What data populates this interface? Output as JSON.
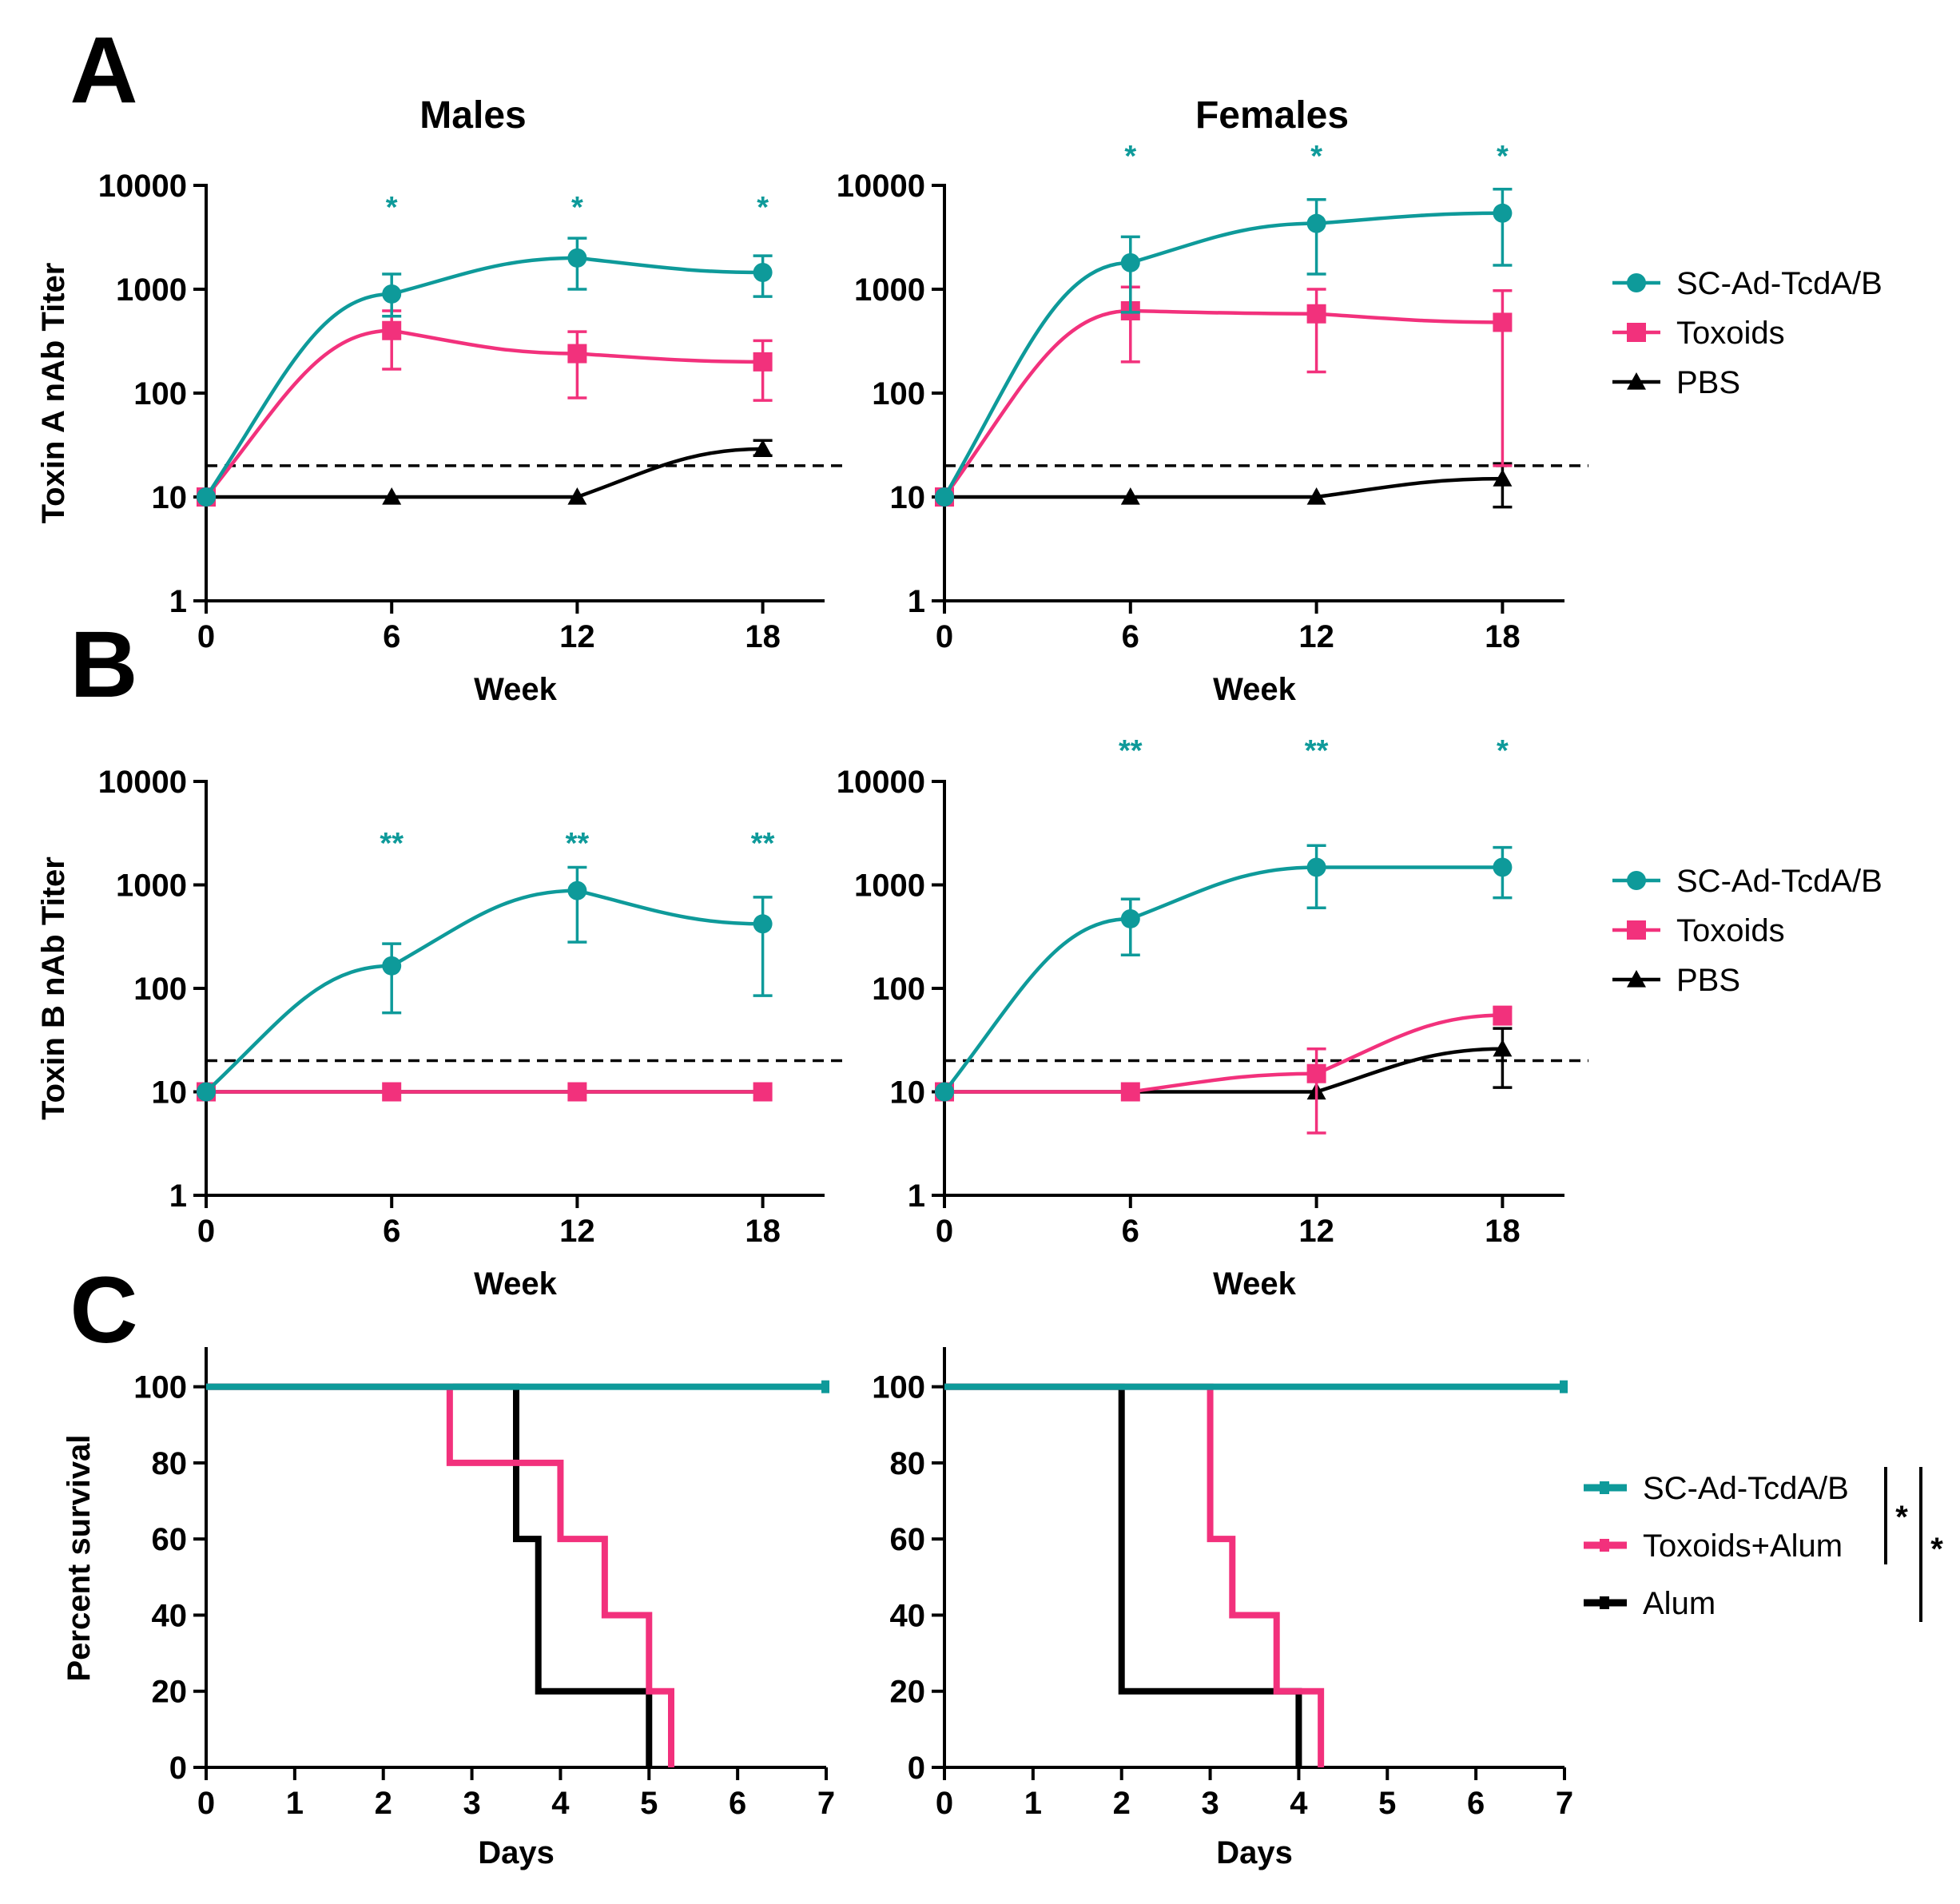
{
  "panel_labels": [
    "A",
    "B",
    "C"
  ],
  "column_titles": [
    "Males",
    "Females"
  ],
  "colors": {
    "teal": "#0e9a9a",
    "pink": "#f2317c",
    "black": "#000000"
  },
  "legends": {
    "titer": [
      "SC-Ad-TcdA/B",
      "Toxoids",
      "PBS"
    ],
    "survival": [
      "SC-Ad-TcdA/B",
      "Toxoids+Alum",
      "Alum"
    ],
    "significance_marks": [
      "*",
      "*"
    ]
  },
  "chart_data": [
    {
      "id": "A-males",
      "type": "line",
      "yscale": "log",
      "ylabel": "Toxin A nAb Titer",
      "xlabel": "Week",
      "x_ticks": [
        "0",
        "6",
        "12",
        "18"
      ],
      "y_ticks": [
        "1",
        "10",
        "100",
        "1000",
        "10000"
      ],
      "ylim": [
        1,
        10000
      ],
      "xlim": [
        0,
        20
      ],
      "threshold": 20,
      "x": [
        0,
        6,
        12,
        18
      ],
      "series": [
        {
          "name": "SC-Ad-TcdA/B",
          "color": "#0e9a9a",
          "marker": "circle",
          "values": [
            10,
            900,
            2000,
            1450
          ],
          "err_lo": [
            10,
            550,
            1000,
            850
          ],
          "err_hi": [
            10,
            1400,
            3100,
            2100
          ]
        },
        {
          "name": "Toxoids",
          "color": "#f2317c",
          "marker": "square",
          "values": [
            10,
            400,
            240,
            200
          ],
          "err_lo": [
            10,
            170,
            90,
            85
          ],
          "err_hi": [
            10,
            620,
            390,
            320
          ]
        },
        {
          "name": "PBS",
          "color": "#000000",
          "marker": "triangle",
          "values": [
            10,
            10,
            10,
            29
          ],
          "err_lo": [
            10,
            10,
            10,
            25
          ],
          "err_hi": [
            10,
            10,
            10,
            35
          ]
        }
      ],
      "significance": [
        {
          "x": 6,
          "label": "*"
        },
        {
          "x": 12,
          "label": "*"
        },
        {
          "x": 18,
          "label": "*"
        }
      ]
    },
    {
      "id": "A-females",
      "type": "line",
      "yscale": "log",
      "ylabel": "",
      "xlabel": "Week",
      "x_ticks": [
        "0",
        "6",
        "12",
        "18"
      ],
      "y_ticks": [
        "1",
        "10",
        "100",
        "1000",
        "10000"
      ],
      "ylim": [
        1,
        10000
      ],
      "xlim": [
        0,
        20
      ],
      "threshold": 20,
      "x": [
        0,
        6,
        12,
        18
      ],
      "series": [
        {
          "name": "SC-Ad-TcdA/B",
          "color": "#0e9a9a",
          "marker": "circle",
          "values": [
            10,
            1800,
            4300,
            5400
          ],
          "err_lo": [
            10,
            600,
            1400,
            1700
          ],
          "err_hi": [
            10,
            3200,
            7300,
            9200
          ]
        },
        {
          "name": "Toxoids",
          "color": "#f2317c",
          "marker": "square",
          "values": [
            10,
            620,
            580,
            480
          ],
          "err_lo": [
            10,
            200,
            160,
            20
          ],
          "err_hi": [
            10,
            1050,
            1000,
            970
          ]
        },
        {
          "name": "PBS",
          "color": "#000000",
          "marker": "triangle",
          "values": [
            10,
            10,
            10,
            15
          ],
          "err_lo": [
            10,
            10,
            10,
            8
          ],
          "err_hi": [
            10,
            10,
            10,
            21
          ]
        }
      ],
      "significance": [
        {
          "x": 6,
          "label": "*"
        },
        {
          "x": 12,
          "label": "*"
        },
        {
          "x": 18,
          "label": "*"
        }
      ]
    },
    {
      "id": "B-males",
      "type": "line",
      "yscale": "log",
      "ylabel": "Toxin B nAb Titer",
      "xlabel": "Week",
      "x_ticks": [
        "0",
        "6",
        "12",
        "18"
      ],
      "y_ticks": [
        "1",
        "10",
        "100",
        "1000",
        "10000"
      ],
      "ylim": [
        1,
        10000
      ],
      "xlim": [
        0,
        20
      ],
      "threshold": 20,
      "x": [
        0,
        6,
        12,
        18
      ],
      "series": [
        {
          "name": "SC-Ad-TcdA/B",
          "color": "#0e9a9a",
          "marker": "circle",
          "values": [
            10,
            165,
            880,
            420
          ],
          "err_lo": [
            10,
            58,
            280,
            85
          ],
          "err_hi": [
            10,
            270,
            1480,
            760
          ]
        },
        {
          "name": "Toxoids",
          "color": "#f2317c",
          "marker": "square",
          "values": [
            10,
            10,
            10,
            10
          ],
          "err_lo": [
            10,
            10,
            10,
            10
          ],
          "err_hi": [
            10,
            10,
            10,
            10
          ]
        },
        {
          "name": "PBS",
          "color": "#000000",
          "marker": "triangle",
          "values": [
            10,
            10,
            10,
            10
          ],
          "err_lo": [
            10,
            10,
            10,
            10
          ],
          "err_hi": [
            10,
            10,
            10,
            10
          ]
        }
      ],
      "significance": [
        {
          "x": 6,
          "label": "**"
        },
        {
          "x": 12,
          "label": "**"
        },
        {
          "x": 18,
          "label": "**"
        }
      ]
    },
    {
      "id": "B-females",
      "type": "line",
      "yscale": "log",
      "ylabel": "",
      "xlabel": "Week",
      "x_ticks": [
        "0",
        "6",
        "12",
        "18"
      ],
      "y_ticks": [
        "1",
        "10",
        "100",
        "1000",
        "10000"
      ],
      "ylim": [
        1,
        10000
      ],
      "xlim": [
        0,
        20
      ],
      "threshold": 20,
      "x": [
        0,
        6,
        12,
        18
      ],
      "series": [
        {
          "name": "SC-Ad-TcdA/B",
          "color": "#0e9a9a",
          "marker": "circle",
          "values": [
            10,
            470,
            1480,
            1480
          ],
          "err_lo": [
            10,
            210,
            600,
            750
          ],
          "err_hi": [
            10,
            730,
            2400,
            2300
          ]
        },
        {
          "name": "Toxoids",
          "color": "#f2317c",
          "marker": "square",
          "values": [
            10,
            10,
            15,
            55
          ],
          "err_lo": [
            10,
            10,
            4,
            45
          ],
          "err_hi": [
            10,
            10,
            26,
            65
          ]
        },
        {
          "name": "PBS",
          "color": "#000000",
          "marker": "triangle",
          "values": [
            10,
            10,
            10,
            26
          ],
          "err_lo": [
            10,
            10,
            10,
            11
          ],
          "err_hi": [
            10,
            10,
            10,
            41
          ]
        }
      ],
      "significance": [
        {
          "x": 6,
          "label": "**"
        },
        {
          "x": 12,
          "label": "**"
        },
        {
          "x": 18,
          "label": "*"
        }
      ]
    },
    {
      "id": "C-males",
      "type": "line",
      "yscale": "linear",
      "ylabel": "Percent survival",
      "xlabel": "Days",
      "x_ticks": [
        "0",
        "1",
        "2",
        "3",
        "4",
        "5",
        "6",
        "7"
      ],
      "y_ticks": [
        "0",
        "20",
        "40",
        "60",
        "80",
        "100"
      ],
      "ylim": [
        0,
        110
      ],
      "xlim": [
        0,
        7
      ],
      "series": [
        {
          "name": "SC-Ad-TcdA/B",
          "color": "#0e9a9a",
          "steps": [
            [
              0,
              100
            ],
            [
              7,
              100
            ]
          ]
        },
        {
          "name": "Toxoids+Alum",
          "color": "#f2317c",
          "steps": [
            [
              0,
              100
            ],
            [
              2.75,
              80
            ],
            [
              4,
              60
            ],
            [
              4.5,
              40
            ],
            [
              5,
              20
            ],
            [
              5.25,
              0
            ]
          ]
        },
        {
          "name": "Alum",
          "color": "#000000",
          "steps": [
            [
              0,
              100
            ],
            [
              3.5,
              60
            ],
            [
              3.75,
              20
            ],
            [
              5,
              0
            ]
          ]
        }
      ]
    },
    {
      "id": "C-females",
      "type": "line",
      "yscale": "linear",
      "ylabel": "",
      "xlabel": "Days",
      "x_ticks": [
        "0",
        "1",
        "2",
        "3",
        "4",
        "5",
        "6",
        "7"
      ],
      "y_ticks": [
        "0",
        "20",
        "40",
        "60",
        "80",
        "100"
      ],
      "ylim": [
        0,
        110
      ],
      "xlim": [
        0,
        7
      ],
      "series": [
        {
          "name": "SC-Ad-TcdA/B",
          "color": "#0e9a9a",
          "steps": [
            [
              0,
              100
            ],
            [
              7,
              100
            ]
          ]
        },
        {
          "name": "Toxoids+Alum",
          "color": "#f2317c",
          "steps": [
            [
              0,
              100
            ],
            [
              3,
              60
            ],
            [
              3.25,
              40
            ],
            [
              3.75,
              20
            ],
            [
              4.25,
              0
            ]
          ]
        },
        {
          "name": "Alum",
          "color": "#000000",
          "steps": [
            [
              0,
              100
            ],
            [
              2,
              20
            ],
            [
              4,
              0
            ]
          ]
        }
      ]
    }
  ]
}
